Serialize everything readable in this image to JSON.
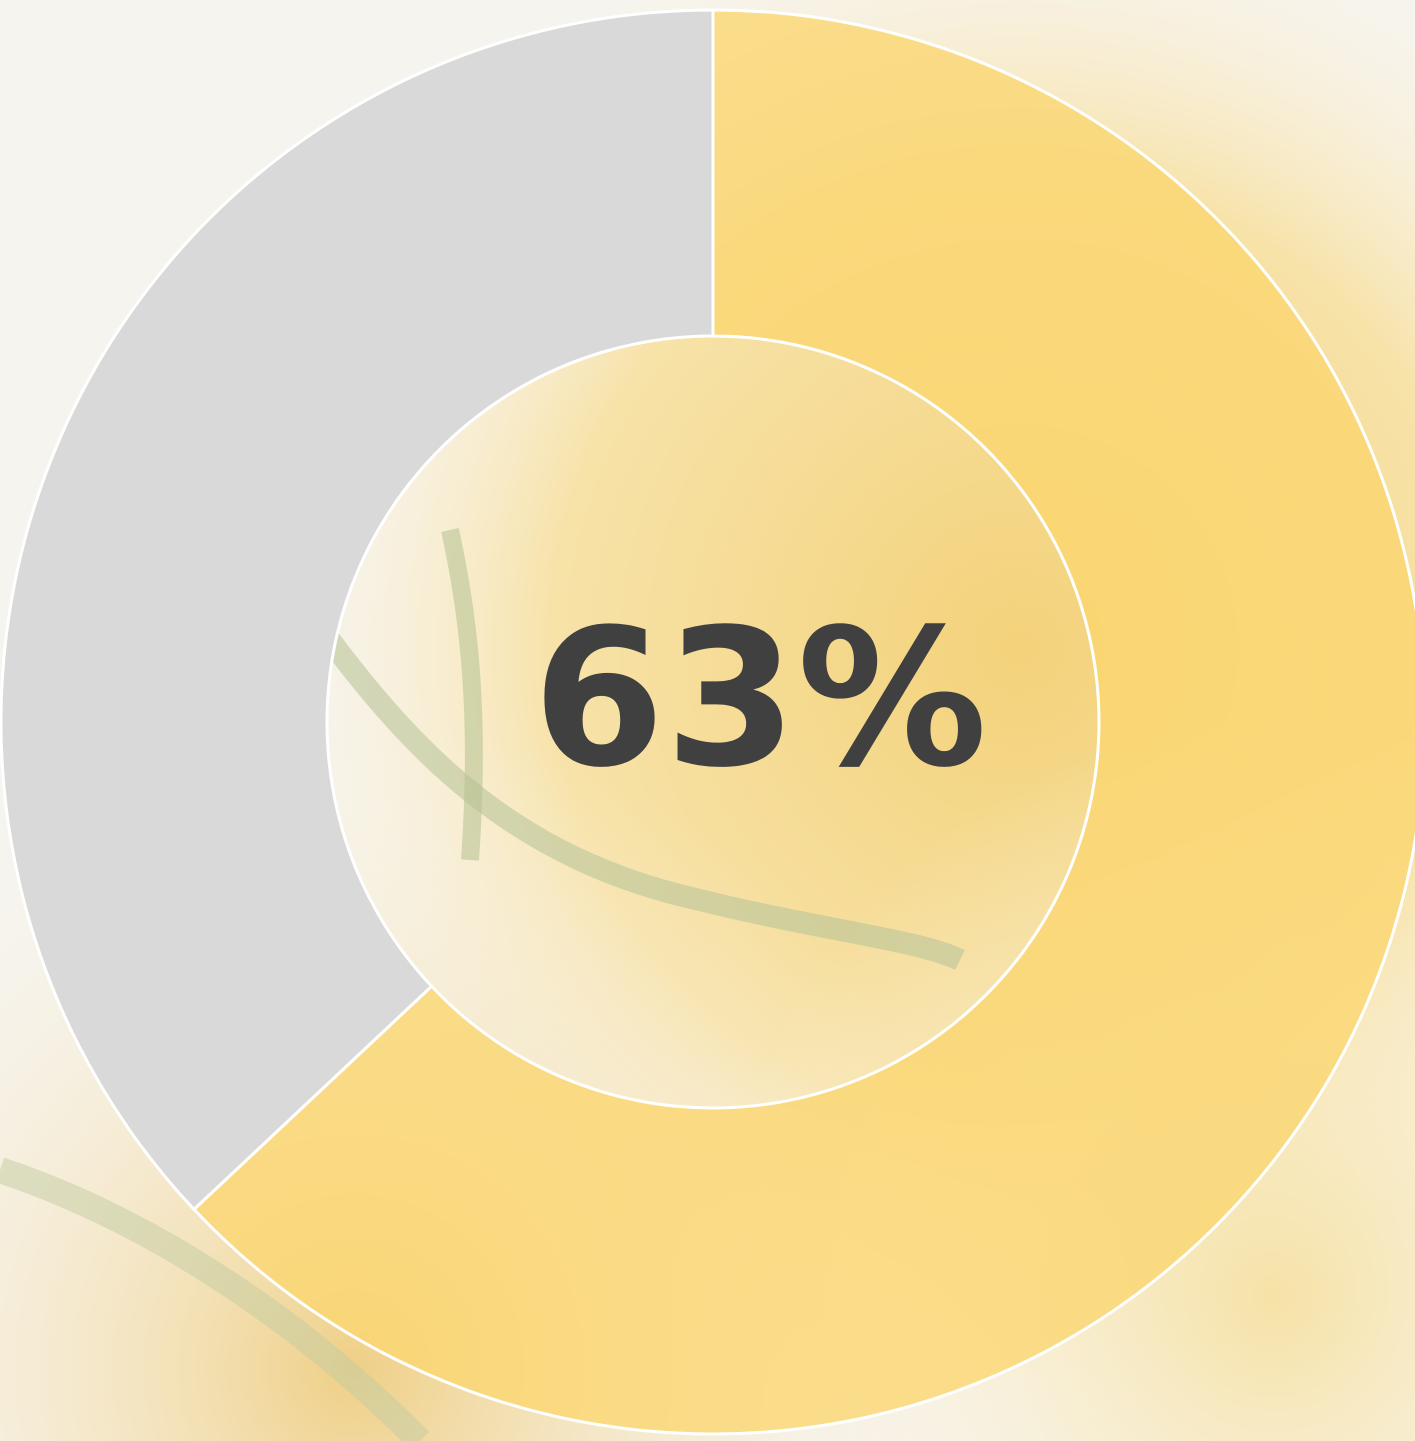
{
  "chart_data": {
    "type": "donut",
    "values": [
      63,
      37
    ],
    "colors": [
      "#fbd66f",
      "#d9d9d9"
    ],
    "center_label": "63%"
  }
}
